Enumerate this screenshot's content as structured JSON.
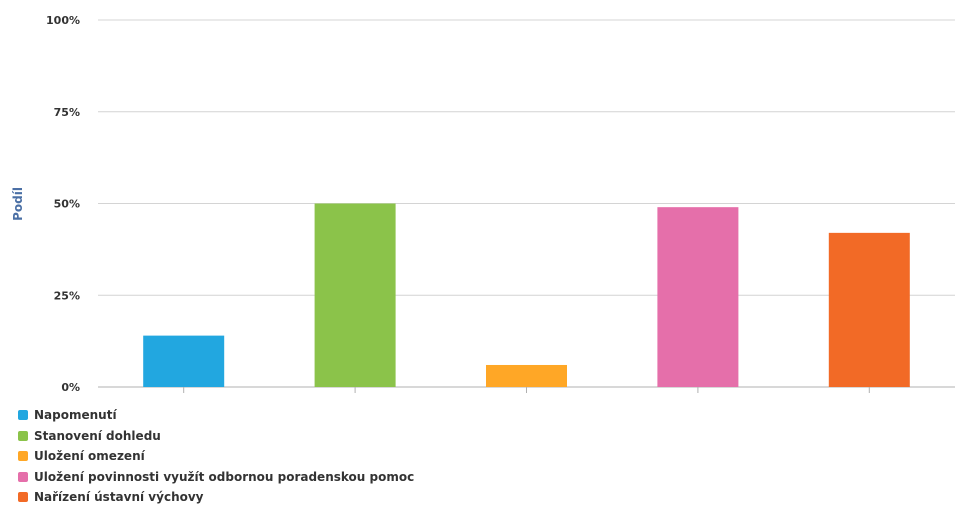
{
  "chart_data": {
    "type": "bar",
    "ylabel": "Podíl",
    "ylim": [
      0,
      100
    ],
    "yticks": [
      {
        "value": 0,
        "label": "0%"
      },
      {
        "value": 25,
        "label": "25%"
      },
      {
        "value": 50,
        "label": "50%"
      },
      {
        "value": 75,
        "label": "75%"
      },
      {
        "value": 100,
        "label": "100%"
      }
    ],
    "grid": true,
    "legend_position": "bottom-left",
    "categories": [
      "Napomenutí",
      "Stanovení dohledu",
      "Uložení omezení",
      "Uložení povinnosti využít odbornou poradenskou pomoc",
      "Nařízení ústavní výchovy"
    ],
    "values": [
      14,
      50,
      6,
      49,
      42
    ],
    "colors": [
      "#22a7e0",
      "#8bc34a",
      "#ffa726",
      "#e56faa",
      "#f26a26"
    ]
  }
}
